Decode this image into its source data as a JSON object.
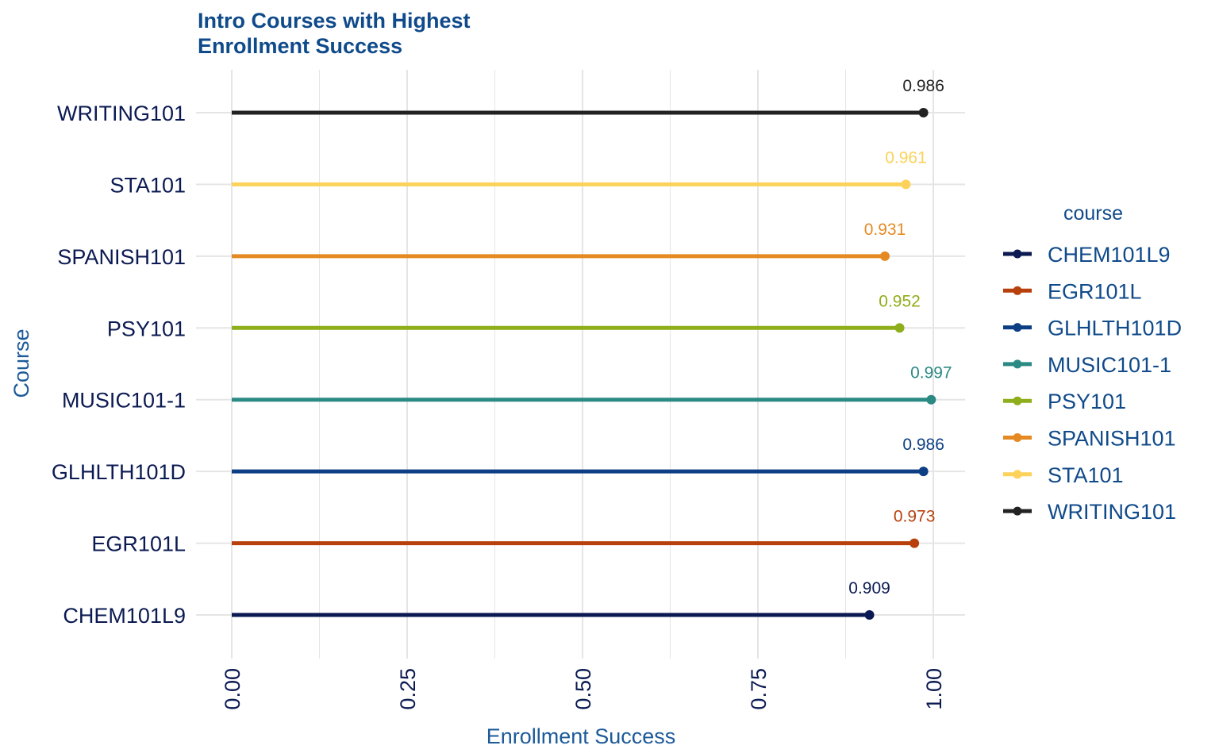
{
  "chart_data": {
    "type": "lollipop",
    "title_lines": [
      "Intro Courses with Highest",
      "Enrollment Success"
    ],
    "xlabel": "Enrollment Success",
    "ylabel": "Course",
    "xlim": [
      0,
      1
    ],
    "x_ticks": [
      0,
      0.25,
      0.5,
      0.75,
      1
    ],
    "x_tick_labels": [
      "0.00",
      "0.25",
      "0.50",
      "0.75",
      "1.00"
    ],
    "x_minor_ticks": [
      0.125,
      0.375,
      0.625,
      0.875
    ],
    "categories": [
      "CHEM101L9",
      "EGR101L",
      "GLHLTH101D",
      "MUSIC101-1",
      "PSY101",
      "SPANISH101",
      "STA101",
      "WRITING101"
    ],
    "values": [
      0.909,
      0.973,
      0.986,
      0.997,
      0.952,
      0.931,
      0.961,
      0.986
    ],
    "value_labels": [
      "0.909",
      "0.973",
      "0.986",
      "0.997",
      "0.952",
      "0.931",
      "0.961",
      "0.986"
    ],
    "colors": [
      "#0b1a52",
      "#b8400c",
      "#0d3f85",
      "#2b8a84",
      "#8fae1b",
      "#e58a22",
      "#fcd25a",
      "#222222"
    ],
    "legend": {
      "title": "course",
      "position": "right",
      "entries": [
        "CHEM101L9",
        "EGR101L",
        "GLHLTH101D",
        "MUSIC101-1",
        "PSY101",
        "SPANISH101",
        "STA101",
        "WRITING101"
      ]
    },
    "grid": true,
    "theme_colors": {
      "title": "#0f4a8a",
      "axis_text": "#0b1a52",
      "axis_title": "#1d5a99",
      "legend_text": "#0f4a8a",
      "grid": "#e5e5e5"
    }
  }
}
